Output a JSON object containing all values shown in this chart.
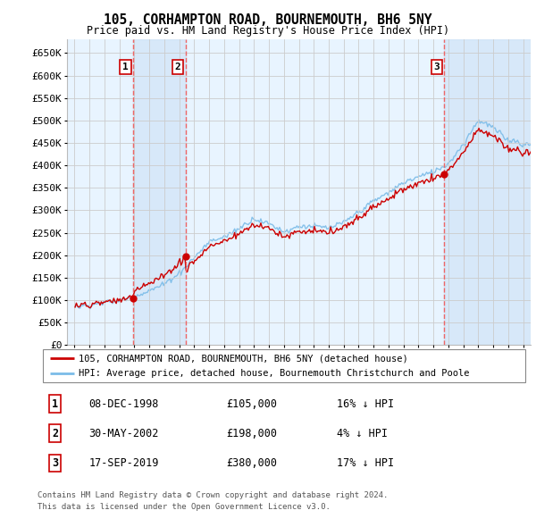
{
  "title": "105, CORHAMPTON ROAD, BOURNEMOUTH, BH6 5NY",
  "subtitle": "Price paid vs. HM Land Registry's House Price Index (HPI)",
  "legend_line1": "105, CORHAMPTON ROAD, BOURNEMOUTH, BH6 5NY (detached house)",
  "legend_line2": "HPI: Average price, detached house, Bournemouth Christchurch and Poole",
  "footer1": "Contains HM Land Registry data © Crown copyright and database right 2024.",
  "footer2": "This data is licensed under the Open Government Licence v3.0.",
  "sales": [
    {
      "label": "1",
      "date": "08-DEC-1998",
      "price": 105000,
      "hpi_diff": "16% ↓ HPI",
      "x": 1998.92
    },
    {
      "label": "2",
      "date": "30-MAY-2002",
      "price": 198000,
      "hpi_diff": "4% ↓ HPI",
      "x": 2002.42
    },
    {
      "label": "3",
      "date": "17-SEP-2019",
      "price": 380000,
      "hpi_diff": "17% ↓ HPI",
      "x": 2019.71
    }
  ],
  "sale_prices": [
    105000,
    198000,
    380000
  ],
  "hpi_color": "#7bbce8",
  "price_color": "#cc0000",
  "sale_marker_color": "#cc0000",
  "vline_color": "#ee6666",
  "box_edge_color": "#cc0000",
  "grid_color": "#cccccc",
  "bg_color": "#e8f4ff",
  "shade_color": "#ddeeff",
  "ylim": [
    0,
    680000
  ],
  "yticks": [
    0,
    50000,
    100000,
    150000,
    200000,
    250000,
    300000,
    350000,
    400000,
    450000,
    500000,
    550000,
    600000,
    650000
  ],
  "xlim": [
    1994.5,
    2025.5
  ],
  "xticks": [
    1995,
    1996,
    1997,
    1998,
    1999,
    2000,
    2001,
    2002,
    2003,
    2004,
    2005,
    2006,
    2007,
    2008,
    2009,
    2010,
    2011,
    2012,
    2013,
    2014,
    2015,
    2016,
    2017,
    2018,
    2019,
    2020,
    2021,
    2022,
    2023,
    2024,
    2025
  ]
}
